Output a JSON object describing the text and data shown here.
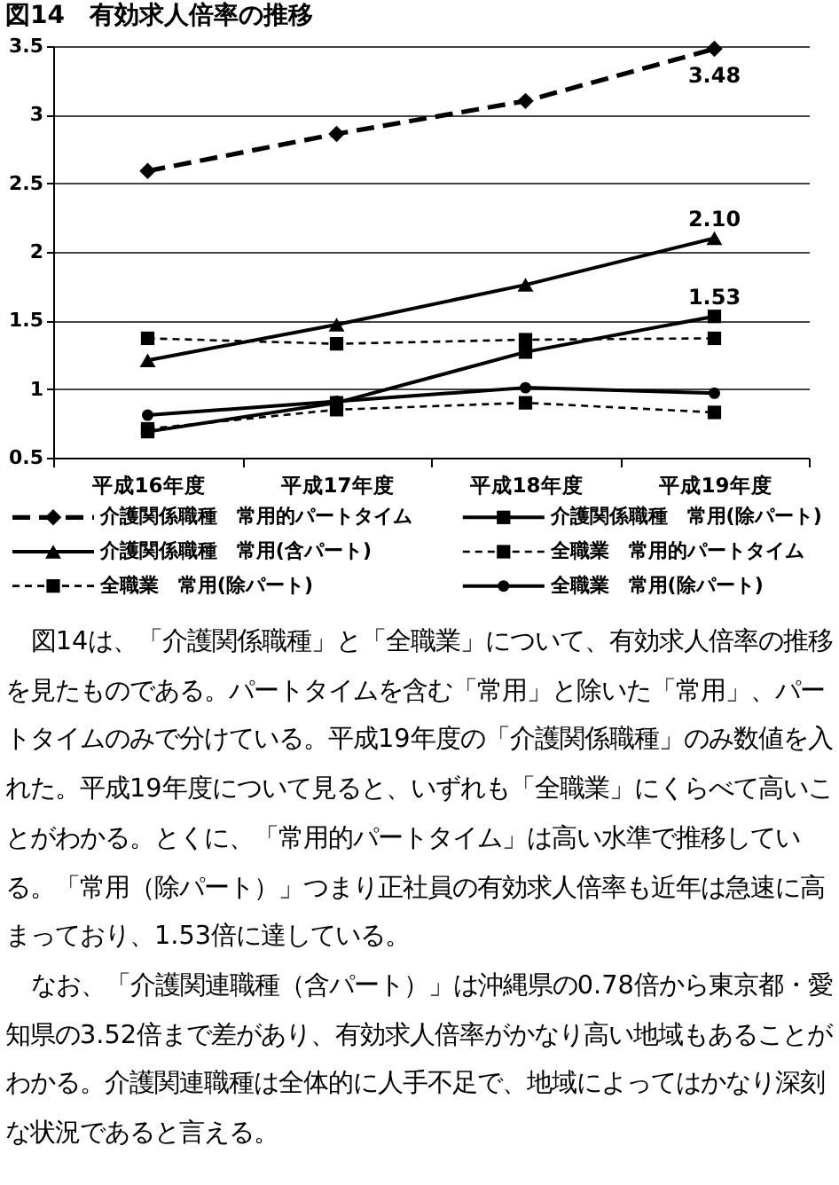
{
  "chart_data": {
    "type": "line",
    "title": "図14　有効求人倍率の推移",
    "categories": [
      "平成16年度",
      "平成17年度",
      "平成18年度",
      "平成19年度"
    ],
    "series": [
      {
        "name": "介護関係職種　常用的パートタイム",
        "color": "#000000",
        "values": [
          2.59,
          2.86,
          3.1,
          3.48
        ],
        "line_style": "dashed",
        "marker": "diamond",
        "value_labels": [
          null,
          null,
          null,
          "3.48"
        ]
      },
      {
        "name": "介護関係職種　常用(除パート)",
        "color": "#000000",
        "values": [
          0.69,
          0.9,
          1.27,
          1.53
        ],
        "line_style": "solid",
        "marker": "square",
        "value_labels": [
          null,
          null,
          null,
          "1.53"
        ]
      },
      {
        "name": "介護関係職種　常用(含パート)",
        "color": "#000000",
        "values": [
          1.21,
          1.47,
          1.76,
          2.1
        ],
        "line_style": "solid",
        "marker": "triangle",
        "value_labels": [
          null,
          null,
          null,
          "2.10"
        ]
      },
      {
        "name": "全職業　常用的パートタイム",
        "color": "#000000",
        "values": [
          1.37,
          1.33,
          1.36,
          1.37
        ],
        "line_style": "dotted",
        "marker": "square"
      },
      {
        "name": "全職業　常用(除パート)",
        "color": "#000000",
        "values": [
          0.71,
          0.85,
          0.9,
          0.83
        ],
        "line_style": "dotted",
        "marker": "square"
      },
      {
        "name": "全職業　常用(除パート)",
        "color": "#000000",
        "values": [
          0.81,
          0.91,
          1.01,
          0.97
        ],
        "line_style": "solid",
        "marker": "circle"
      }
    ],
    "ylim": [
      0.5,
      3.5
    ],
    "yticks": [
      0.5,
      1,
      1.5,
      2,
      2.5,
      3,
      3.5
    ],
    "grid": "y",
    "legend": "bottom",
    "annotations": [
      "図14は、「介護関係職種」と「全職業」について、有効求人倍率の推移を見たものである。パートタイムを含む「常用」と除いた「常用」、パートタイムのみで分けている。平成19年度の「介護関係職種」のみ数値を入れた。平成19年度について見ると、いずれも「全職業」にくらべて高いことがわかる。とくに、「常用的パートタイム」は高い水準で推移している。「常用（除パート）」つまり正社員の有効求人倍率も近年は急速に高まっており、1.53倍に達している。",
      "なお、「介護関連職種（含パート）」は沖縄県の0.78倍から東京都・愛知県の3.52倍まで差があり、有効求人倍率がかなり高い地域もあることがわかる。介護関連職種は全体的に人手不足で、地域によってはかなり深刻な状況であると言える。"
    ]
  }
}
